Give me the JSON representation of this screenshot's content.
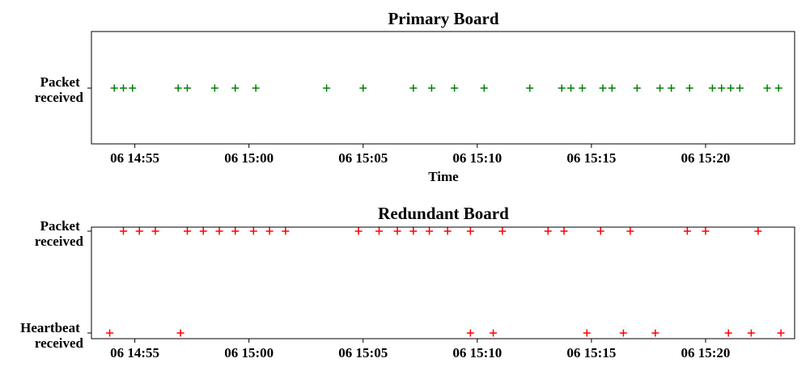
{
  "chart_data": [
    {
      "type": "scatter",
      "title": "Primary Board",
      "xlabel": "Time",
      "x_ticks": [
        "06 14:55",
        "06 15:00",
        "06 15:05",
        "06 15:10",
        "06 15:15",
        "06 15:20"
      ],
      "x_tick_minutes": [
        895,
        900,
        905,
        910,
        915,
        920
      ],
      "xlim_minutes": [
        893.1,
        923.9
      ],
      "y_categories": [
        [
          "Packet",
          "received"
        ]
      ],
      "marker": "+",
      "color": "#008000",
      "series": [
        {
          "y": "Packet received",
          "x_minutes": [
            894.1,
            894.5,
            894.9,
            896.9,
            897.3,
            898.5,
            899.4,
            900.3,
            903.4,
            905.0,
            907.2,
            908.0,
            909.0,
            910.3,
            912.3,
            913.7,
            914.1,
            914.6,
            915.5,
            915.9,
            917.0,
            918.0,
            918.5,
            919.3,
            920.3,
            920.7,
            921.1,
            921.5,
            922.7,
            923.2
          ]
        }
      ]
    },
    {
      "type": "scatter",
      "title": "Redundant Board",
      "xlabel": "",
      "x_ticks": [
        "06 14:55",
        "06 15:00",
        "06 15:05",
        "06 15:10",
        "06 15:15",
        "06 15:20"
      ],
      "x_tick_minutes": [
        895,
        900,
        905,
        910,
        915,
        920
      ],
      "xlim_minutes": [
        893.1,
        923.9
      ],
      "y_categories": [
        [
          "Packet",
          "received"
        ],
        [
          "Heartbeat",
          "received"
        ]
      ],
      "marker": "+",
      "color": "#ff0000",
      "series": [
        {
          "y": "Packet received",
          "x_minutes": [
            894.5,
            895.2,
            895.9,
            897.3,
            898.0,
            898.7,
            899.4,
            900.2,
            900.9,
            901.6,
            904.8,
            905.7,
            906.5,
            907.2,
            907.9,
            908.7,
            909.7,
            911.1,
            913.1,
            913.8,
            915.4,
            916.7,
            919.2,
            920.0,
            922.3
          ]
        },
        {
          "y": "Heartbeat received",
          "x_minutes": [
            893.9,
            897.0,
            909.7,
            910.7,
            914.8,
            916.4,
            917.8,
            921.0,
            922.0,
            923.3
          ]
        }
      ]
    }
  ]
}
